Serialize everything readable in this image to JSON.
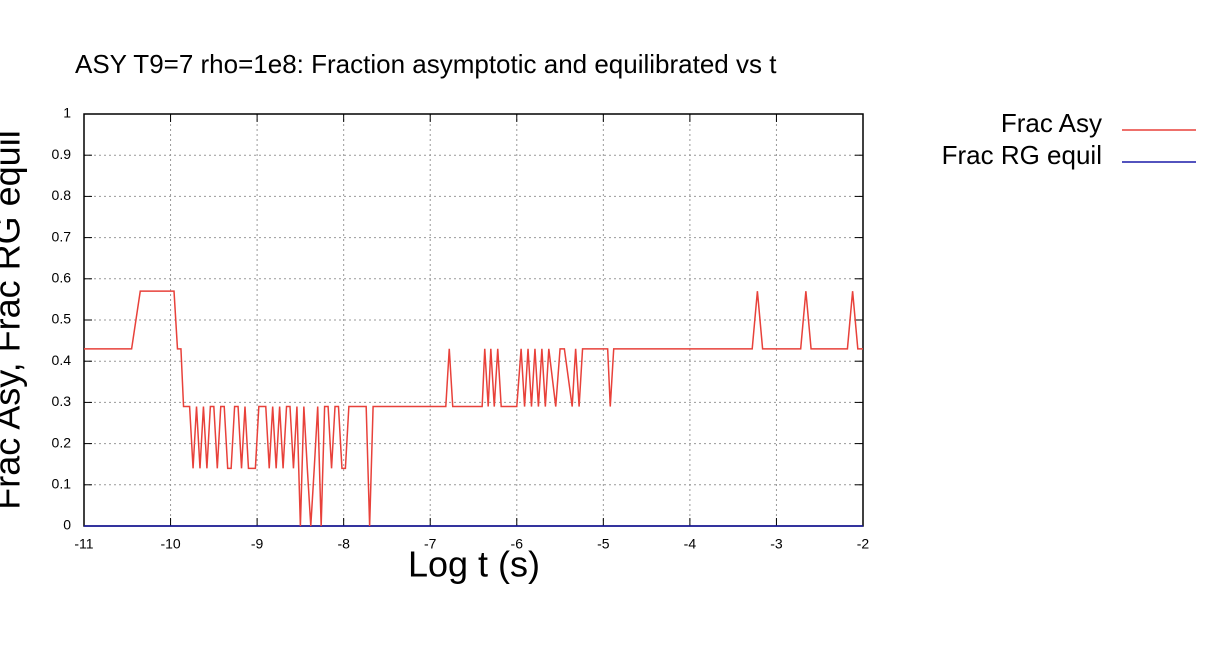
{
  "chart_data": {
    "type": "line",
    "title": "ASY T9=7 rho=1e8: Fraction asymptotic and equilibrated vs t",
    "x_label": "Log t (s)",
    "y_label": "Frac Asy, Frac RG equil",
    "xlim": [
      -11,
      -2
    ],
    "xticks": [
      -11,
      -10,
      -9,
      -8,
      -7,
      -6,
      -5,
      -4,
      -3,
      -2
    ],
    "ylim": [
      0,
      1
    ],
    "yticks": [
      0,
      0.1,
      0.2,
      0.3,
      0.4,
      0.5,
      0.6,
      0.7,
      0.8,
      0.9,
      1
    ],
    "grid": true,
    "legend": "outside-right",
    "x": [
      -11,
      -10.45,
      -10.35,
      -9.96,
      -9.92,
      -9.88,
      -9.85,
      -9.78,
      -9.74,
      -9.7,
      -9.66,
      -9.62,
      -9.58,
      -9.54,
      -9.5,
      -9.46,
      -9.42,
      -9.38,
      -9.34,
      -9.3,
      -9.26,
      -9.22,
      -9.18,
      -9.14,
      -9.1,
      -9.06,
      -9.02,
      -8.98,
      -8.9,
      -8.86,
      -8.82,
      -8.78,
      -8.74,
      -8.7,
      -8.66,
      -8.62,
      -8.58,
      -8.54,
      -8.5,
      -8.46,
      -8.42,
      -8.38,
      -8.34,
      -8.3,
      -8.26,
      -8.22,
      -8.18,
      -8.14,
      -8.1,
      -8.06,
      -8.02,
      -7.98,
      -7.94,
      -7.9,
      -7.8,
      -7.74,
      -7.7,
      -7.66,
      -7.62,
      -6.82,
      -6.78,
      -6.74,
      -6.4,
      -6.37,
      -6.33,
      -6.3,
      -6.26,
      -6.22,
      -6.18,
      -6.0,
      -5.95,
      -5.91,
      -5.87,
      -5.83,
      -5.79,
      -5.75,
      -5.71,
      -5.67,
      -5.63,
      -5.55,
      -5.5,
      -5.45,
      -5.36,
      -5.32,
      -5.28,
      -5.24,
      -5.2,
      -5.1,
      -5.05,
      -4.95,
      -4.92,
      -4.88,
      -3.28,
      -3.22,
      -3.16,
      -2.72,
      -2.66,
      -2.6,
      -2.18,
      -2.12,
      -2.06,
      -2.0
    ],
    "series": [
      {
        "name": "Frac Asy",
        "color": "#e8413a",
        "values": [
          0.43,
          0.43,
          0.57,
          0.57,
          0.43,
          0.43,
          0.29,
          0.29,
          0.14,
          0.29,
          0.14,
          0.29,
          0.14,
          0.29,
          0.29,
          0.14,
          0.29,
          0.29,
          0.14,
          0.14,
          0.29,
          0.29,
          0.14,
          0.29,
          0.14,
          0.14,
          0.14,
          0.29,
          0.29,
          0.14,
          0.29,
          0.14,
          0.29,
          0.14,
          0.29,
          0.29,
          0.14,
          0.29,
          0.0,
          0.29,
          0.14,
          0.0,
          0.14,
          0.29,
          0.0,
          0.29,
          0.29,
          0.14,
          0.29,
          0.29,
          0.14,
          0.14,
          0.29,
          0.29,
          0.29,
          0.29,
          0.0,
          0.29,
          0.29,
          0.29,
          0.43,
          0.29,
          0.29,
          0.43,
          0.29,
          0.43,
          0.29,
          0.43,
          0.29,
          0.29,
          0.43,
          0.29,
          0.43,
          0.29,
          0.43,
          0.29,
          0.43,
          0.29,
          0.43,
          0.29,
          0.43,
          0.43,
          0.29,
          0.43,
          0.29,
          0.43,
          0.43,
          0.43,
          0.43,
          0.43,
          0.29,
          0.43,
          0.43,
          0.57,
          0.43,
          0.43,
          0.57,
          0.43,
          0.43,
          0.57,
          0.43,
          0.43
        ]
      },
      {
        "name": "Frac RG equil",
        "color": "#1a1aa8",
        "values": [
          0,
          0,
          0,
          0,
          0,
          0,
          0,
          0,
          0,
          0,
          0,
          0,
          0,
          0,
          0,
          0,
          0,
          0,
          0,
          0,
          0,
          0,
          0,
          0,
          0,
          0,
          0,
          0,
          0,
          0,
          0,
          0,
          0,
          0,
          0,
          0,
          0,
          0,
          0,
          0,
          0,
          0,
          0,
          0,
          0,
          0,
          0,
          0,
          0,
          0,
          0,
          0,
          0,
          0,
          0,
          0,
          0,
          0,
          0,
          0,
          0,
          0,
          0,
          0,
          0,
          0,
          0,
          0,
          0,
          0,
          0,
          0,
          0,
          0,
          0,
          0,
          0,
          0,
          0,
          0,
          0,
          0,
          0,
          0,
          0,
          0,
          0,
          0,
          0,
          0,
          0,
          0,
          0,
          0,
          0,
          0,
          0,
          0,
          0,
          0,
          0,
          0
        ]
      }
    ]
  }
}
